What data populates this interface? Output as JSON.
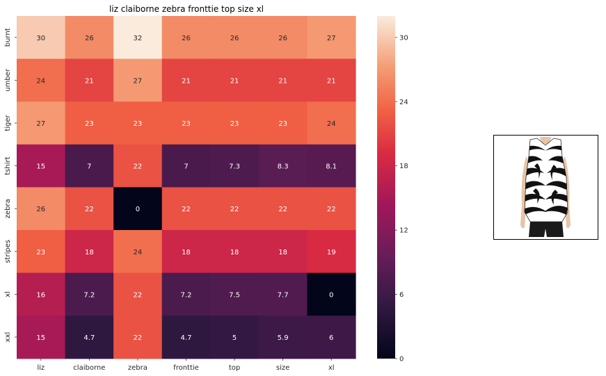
{
  "chart_data": {
    "type": "heatmap",
    "title": "liz claiborne zebra fronttie top size xl",
    "x_categories": [
      "liz",
      "claiborne",
      "zebra",
      "fronttie",
      "top",
      "size",
      "xl"
    ],
    "y_categories": [
      "burnt",
      "umber",
      "tiger",
      "tshirt",
      "zebra",
      "stripes",
      "xl",
      "xxl"
    ],
    "values": [
      [
        30,
        26,
        32,
        26,
        26,
        26,
        27
      ],
      [
        24,
        21,
        27,
        21,
        21,
        21,
        21
      ],
      [
        27,
        23,
        23,
        23,
        23,
        23,
        24
      ],
      [
        15,
        7,
        22,
        7,
        7.3,
        8.3,
        8.1
      ],
      [
        26,
        22,
        0,
        22,
        22,
        22,
        22
      ],
      [
        23,
        18,
        24,
        18,
        18,
        18,
        19
      ],
      [
        16,
        7.2,
        22,
        7.2,
        7.5,
        7.7,
        0
      ],
      [
        15,
        4.7,
        22,
        4.7,
        5,
        5.9,
        6
      ]
    ],
    "annotations": [
      [
        "30",
        "26",
        "32",
        "26",
        "26",
        "26",
        "27"
      ],
      [
        "24",
        "21",
        "27",
        "21",
        "21",
        "21",
        "21"
      ],
      [
        "27",
        "23",
        "23",
        "23",
        "23",
        "23",
        "24"
      ],
      [
        "15",
        "7",
        "22",
        "7",
        "7.3",
        "8.3",
        "8.1"
      ],
      [
        "26",
        "22",
        "0",
        "22",
        "22",
        "22",
        "22"
      ],
      [
        "23",
        "18",
        "24",
        "18",
        "18",
        "18",
        "19"
      ],
      [
        "16",
        "7.2",
        "22",
        "7.2",
        "7.5",
        "7.7",
        "0"
      ],
      [
        "15",
        "4.7",
        "22",
        "4.7",
        "5",
        "5.9",
        "6"
      ]
    ],
    "colorscale": "rocket",
    "colorbar": {
      "range": [
        0,
        32
      ],
      "ticks": [
        "0",
        "6",
        "12",
        "18",
        "24",
        "30"
      ]
    }
  },
  "product_image": {
    "subject": "sleeveless zebra print top"
  }
}
